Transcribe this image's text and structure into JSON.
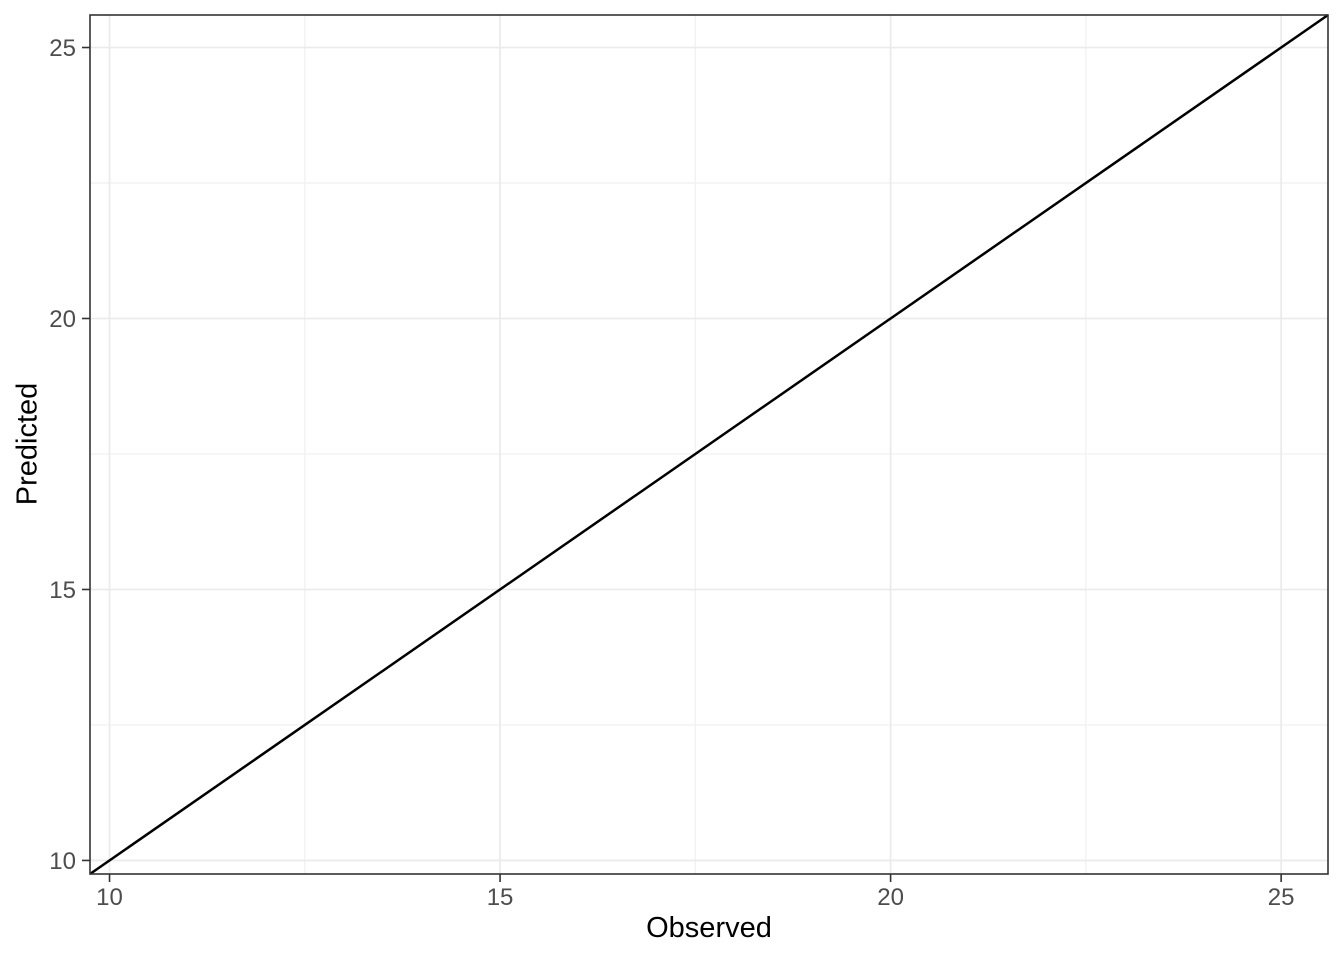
{
  "chart_data": {
    "type": "line",
    "title": "",
    "xlabel": "Observed",
    "ylabel": "Predicted",
    "xlim": [
      9.75,
      25.6
    ],
    "ylim": [
      9.75,
      25.6
    ],
    "x_ticks": [
      10,
      15,
      20,
      25
    ],
    "y_ticks": [
      10,
      15,
      20,
      25
    ],
    "x_minor_ticks": [
      12.5,
      17.5,
      22.5
    ],
    "y_minor_ticks": [
      12.5,
      17.5,
      22.5
    ],
    "grid": true,
    "legend": "none",
    "series": [
      {
        "name": "identity-line",
        "x": [
          9.75,
          25.6
        ],
        "y": [
          9.75,
          25.6
        ],
        "color": "#000000",
        "width": 2.5
      }
    ],
    "colors": {
      "background": "#ffffff",
      "panel_background": "#ffffff",
      "panel_border": "#333333",
      "grid_major": "#ebebeb",
      "grid_minor": "#f2f2f2",
      "tick_mark": "#333333",
      "tick_label": "#4d4d4d",
      "axis_title": "#000000",
      "line": "#000000"
    }
  }
}
